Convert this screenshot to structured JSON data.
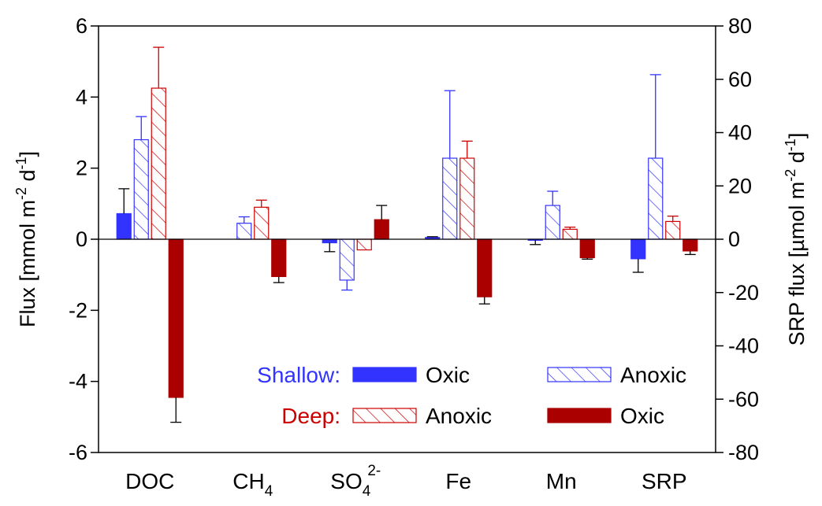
{
  "chart_data": {
    "type": "bar",
    "categories": [
      {
        "id": "DOC",
        "base": "DOC",
        "sub": "",
        "sup": ""
      },
      {
        "id": "CH4",
        "base": "CH",
        "sub": "4",
        "sup": ""
      },
      {
        "id": "SO42-",
        "base": "SO",
        "sub": "4",
        "sup": "2-"
      },
      {
        "id": "Fe",
        "base": "Fe",
        "sub": "",
        "sup": ""
      },
      {
        "id": "Mn",
        "base": "Mn",
        "sub": "",
        "sup": ""
      },
      {
        "id": "SRP",
        "base": "SRP",
        "sub": "",
        "sup": ""
      }
    ],
    "series": [
      {
        "group": "Shallow",
        "name": "Oxic",
        "color": "#3333ff",
        "pattern": "solid",
        "values": [
          0.72,
          0.0,
          -0.1,
          0.05,
          -0.03,
          -0.55
        ],
        "errors": [
          0.7,
          0.0,
          0.25,
          0.02,
          0.12,
          0.38
        ]
      },
      {
        "group": "Shallow",
        "name": "Anoxic",
        "color": "#3333ff",
        "pattern": "hatched",
        "values": [
          2.8,
          0.45,
          -1.15,
          2.28,
          0.95,
          2.28
        ],
        "errors": [
          0.65,
          0.18,
          0.28,
          1.9,
          0.4,
          2.35
        ]
      },
      {
        "group": "Deep",
        "name": "Anoxic",
        "color": "#cc0000",
        "pattern": "hatched",
        "values": [
          4.25,
          0.9,
          -0.3,
          2.28,
          0.28,
          0.5
        ],
        "errors": [
          1.15,
          0.2,
          0.0,
          0.48,
          0.06,
          0.15
        ]
      },
      {
        "group": "Deep",
        "name": "Oxic",
        "color": "#aa0000",
        "pattern": "solid",
        "values": [
          -4.45,
          -1.05,
          0.55,
          -1.62,
          -0.52,
          -0.33
        ],
        "errors": [
          0.7,
          0.17,
          0.4,
          0.2,
          0.04,
          0.1
        ]
      }
    ],
    "y_left": {
      "label": "Flux [mmol m",
      "sup1": "-2",
      "mid": " d",
      "sup2": "-1",
      "end": "]",
      "range": [
        -6,
        6
      ],
      "ticks": [
        -6,
        -4,
        -2,
        0,
        2,
        4,
        6
      ]
    },
    "y_right": {
      "label": "SRP flux [µmol m",
      "sup1": "-2",
      "mid": " d",
      "sup2": "-1",
      "end": "]",
      "range": [
        -80,
        80
      ],
      "ticks": [
        -80,
        -60,
        -40,
        -20,
        0,
        20,
        40,
        60,
        80
      ]
    },
    "legend": {
      "placement": "bottom-center",
      "groups": [
        {
          "label": "Shallow:",
          "color": "#3333ff"
        },
        {
          "label": "Deep:",
          "color": "#cc0000"
        }
      ],
      "entries": [
        {
          "group": 0,
          "name": "Oxic",
          "color": "#3333ff",
          "pattern": "solid"
        },
        {
          "group": 0,
          "name": "Anoxic",
          "color": "#3333ff",
          "pattern": "hatched"
        },
        {
          "group": 1,
          "name": "Anoxic",
          "color": "#cc0000",
          "pattern": "hatched"
        },
        {
          "group": 1,
          "name": "Oxic",
          "color": "#aa0000",
          "pattern": "solid"
        }
      ]
    },
    "grid": false
  }
}
